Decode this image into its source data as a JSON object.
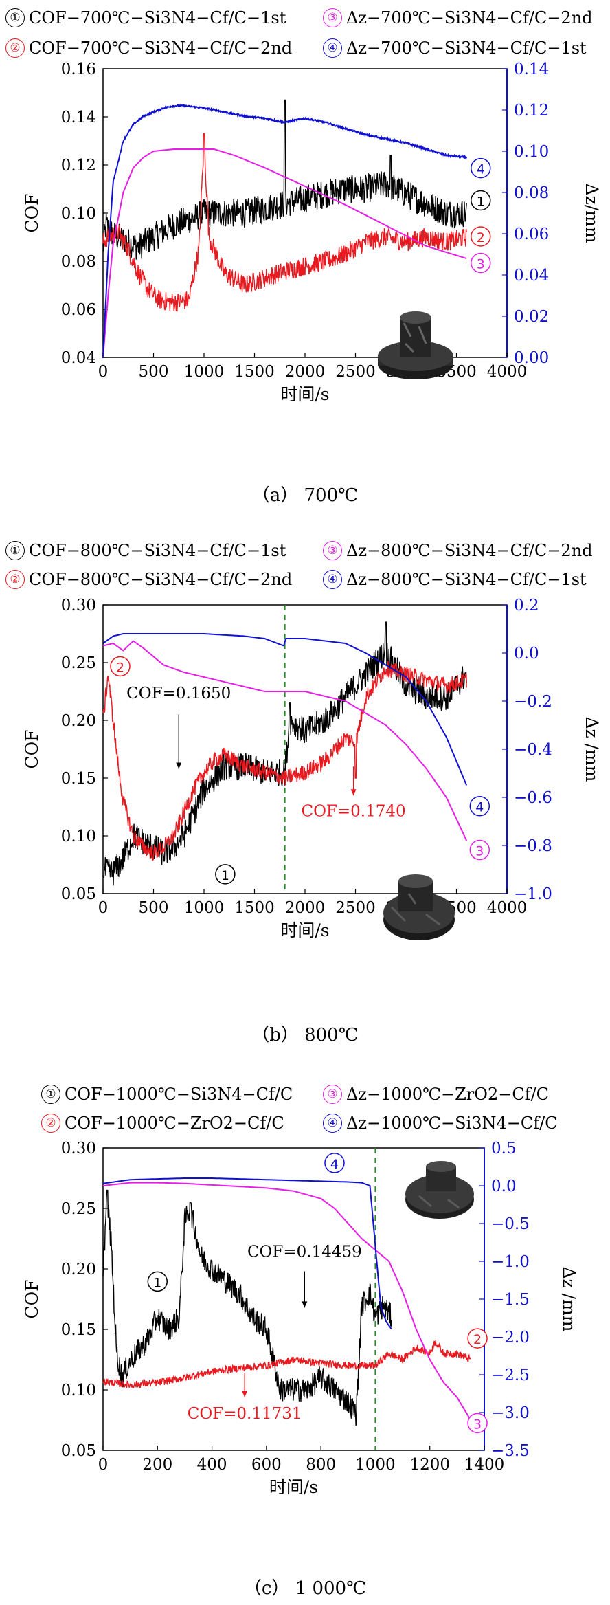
{
  "chart_data": [
    {
      "type": "line",
      "caption": "（a） 700℃",
      "xlabel": "时间/s",
      "ylabel": "COF",
      "y2label": "Δz/mm",
      "xlim": [
        0,
        4000
      ],
      "ylim": [
        0.04,
        0.16
      ],
      "y2lim": [
        0.0,
        0.14
      ],
      "xticks": [
        "0",
        "500",
        "1000",
        "1500",
        "2000",
        "2500",
        "3000",
        "3500",
        "4000"
      ],
      "yticks": [
        "0.04",
        "0.06",
        "0.08",
        "0.10",
        "0.12",
        "0.14",
        "0.16"
      ],
      "y2ticks": [
        "0.00",
        "0.02",
        "0.04",
        "0.06",
        "0.08",
        "0.10",
        "0.12",
        "0.14"
      ],
      "legend": [
        {
          "num": "①",
          "label": "COF−700℃−Si3N4−Cf/C−1st",
          "color": "#000000"
        },
        {
          "num": "②",
          "label": "COF−700℃−Si3N4−Cf/C−2nd",
          "color": "#e8191f"
        },
        {
          "num": "③",
          "label": "Δz−700℃−Si3N4−Cf/C−2nd",
          "color": "#e61ee6"
        },
        {
          "num": "④",
          "label": "Δz−700℃−Si3N4−Cf/C−1st",
          "color": "#1010d0"
        }
      ],
      "series": [
        {
          "axis": "left",
          "color": "#000000",
          "noise": 0.006,
          "x": [
            0,
            30,
            80,
            150,
            250,
            350,
            500,
            700,
            900,
            1000,
            1200,
            1400,
            1600,
            1800,
            2000,
            2200,
            2400,
            2600,
            2800,
            3000,
            3200,
            3400,
            3600
          ],
          "y": [
            0.085,
            0.095,
            0.092,
            0.09,
            0.088,
            0.086,
            0.09,
            0.095,
            0.098,
            0.1,
            0.1,
            0.1,
            0.102,
            0.104,
            0.106,
            0.108,
            0.11,
            0.11,
            0.112,
            0.108,
            0.104,
            0.1,
            0.1
          ],
          "spikes": [
            [
              1800,
              0.147
            ],
            [
              2850,
              0.124
            ]
          ]
        },
        {
          "axis": "left",
          "color": "#e8191f",
          "noise": 0.004,
          "x": [
            0,
            50,
            150,
            250,
            350,
            450,
            550,
            650,
            750,
            850,
            950,
            1000,
            1050,
            1200,
            1400,
            1600,
            1800,
            2000,
            2200,
            2400,
            2600,
            2800,
            3000,
            3200,
            3400,
            3600
          ],
          "y": [
            0.088,
            0.09,
            0.092,
            0.085,
            0.075,
            0.068,
            0.064,
            0.063,
            0.063,
            0.064,
            0.085,
            0.13,
            0.09,
            0.075,
            0.07,
            0.073,
            0.076,
            0.078,
            0.08,
            0.083,
            0.088,
            0.09,
            0.088,
            0.09,
            0.088,
            0.09
          ],
          "spikes": [
            [
              1000,
              0.133
            ]
          ]
        },
        {
          "axis": "right",
          "color": "#e61ee6",
          "noise": 0.0,
          "x": [
            0,
            50,
            100,
            200,
            300,
            400,
            500,
            700,
            900,
            1100,
            1300,
            1600,
            2000,
            2400,
            2800,
            3200,
            3600
          ],
          "y": [
            0.0,
            0.03,
            0.055,
            0.08,
            0.092,
            0.097,
            0.1,
            0.101,
            0.101,
            0.101,
            0.098,
            0.092,
            0.083,
            0.074,
            0.064,
            0.054,
            0.048
          ]
        },
        {
          "axis": "right",
          "color": "#1010d0",
          "noise": 0.0004,
          "x": [
            0,
            50,
            100,
            200,
            300,
            400,
            500,
            600,
            700,
            800,
            1000,
            1200,
            1400,
            1600,
            1800,
            2000,
            2200,
            2400,
            2600,
            2800,
            3000,
            3200,
            3400,
            3600
          ],
          "y": [
            0.0,
            0.05,
            0.085,
            0.105,
            0.113,
            0.117,
            0.119,
            0.121,
            0.122,
            0.122,
            0.121,
            0.119,
            0.117,
            0.116,
            0.114,
            0.116,
            0.114,
            0.111,
            0.108,
            0.106,
            0.104,
            0.101,
            0.098,
            0.097
          ]
        }
      ],
      "annotations": [
        {
          "text": "①",
          "color": "#000000",
          "x": 3740,
          "y": 0.103,
          "axis": "left"
        },
        {
          "text": "②",
          "color": "#e8191f",
          "x": 3740,
          "y": 0.088,
          "axis": "left"
        },
        {
          "text": "③",
          "color": "#e61ee6",
          "x": 3740,
          "y": 0.077,
          "axis": "left"
        },
        {
          "text": "④",
          "color": "#1010d0",
          "x": 3740,
          "y": 0.1164,
          "axis": "left"
        }
      ],
      "vline": null
    },
    {
      "type": "line",
      "caption": "（b） 800℃",
      "xlabel": "时间/s",
      "ylabel": "COF",
      "y2label": "Δz /mm",
      "xlim": [
        0,
        4000
      ],
      "ylim": [
        0.05,
        0.3
      ],
      "y2lim": [
        -1.0,
        0.2
      ],
      "xticks": [
        "0",
        "500",
        "1000",
        "1500",
        "2000",
        "2500",
        "3000",
        "3500",
        "4000"
      ],
      "yticks": [
        "0.05",
        "0.10",
        "0.15",
        "0.20",
        "0.25",
        "0.30"
      ],
      "y2ticks": [
        "−1.0",
        "−0.8",
        "−0.6",
        "−0.4",
        "−0.2",
        "0.0",
        "0.2"
      ],
      "legend": [
        {
          "num": "①",
          "label": "COF−800℃−Si3N4−Cf/C−1st",
          "color": "#000000"
        },
        {
          "num": "②",
          "label": "COF−800℃−Si3N4−Cf/C−2nd",
          "color": "#e8191f"
        },
        {
          "num": "③",
          "label": "Δz−800℃−Si3N4−Cf/C−2nd",
          "color": "#e61ee6"
        },
        {
          "num": "④",
          "label": "Δz−800℃−Si3N4−Cf/C−1st",
          "color": "#1010d0"
        }
      ],
      "series": [
        {
          "axis": "left",
          "color": "#000000",
          "noise": 0.012,
          "x": [
            0,
            100,
            200,
            300,
            400,
            500,
            600,
            700,
            800,
            900,
            1000,
            1100,
            1200,
            1400,
            1600,
            1800,
            1850,
            2000,
            2200,
            2400,
            2600,
            2800,
            3000,
            3200,
            3400,
            3600
          ],
          "y": [
            0.07,
            0.068,
            0.08,
            0.1,
            0.095,
            0.09,
            0.085,
            0.09,
            0.1,
            0.12,
            0.14,
            0.15,
            0.16,
            0.16,
            0.155,
            0.155,
            0.2,
            0.19,
            0.2,
            0.22,
            0.24,
            0.26,
            0.23,
            0.22,
            0.22,
            0.24
          ],
          "spikes": [
            [
              1850,
              0.215
            ],
            [
              2800,
              0.285
            ]
          ]
        },
        {
          "axis": "left",
          "color": "#e8191f",
          "noise": 0.007,
          "x": [
            0,
            50,
            100,
            150,
            200,
            300,
            400,
            500,
            600,
            700,
            800,
            900,
            1000,
            1100,
            1200,
            1400,
            1600,
            1800,
            2000,
            2200,
            2400,
            2500,
            2600,
            2800,
            3000,
            3200,
            3400,
            3600
          ],
          "y": [
            0.2,
            0.24,
            0.2,
            0.16,
            0.13,
            0.1,
            0.09,
            0.085,
            0.09,
            0.1,
            0.12,
            0.14,
            0.155,
            0.165,
            0.17,
            0.16,
            0.155,
            0.15,
            0.155,
            0.165,
            0.185,
            0.18,
            0.22,
            0.245,
            0.24,
            0.235,
            0.23,
            0.235
          ],
          "spikes": [
            [
              2500,
              0.15
            ]
          ]
        },
        {
          "axis": "right",
          "color": "#e61ee6",
          "noise": 0.0,
          "x": [
            0,
            100,
            200,
            300,
            400,
            600,
            800,
            1000,
            1200,
            1400,
            1600,
            1800,
            2000,
            2200,
            2400,
            2600,
            2800,
            3000,
            3200,
            3400,
            3600
          ],
          "y": [
            0.03,
            0.04,
            0.01,
            0.05,
            0.02,
            -0.05,
            -0.08,
            -0.1,
            -0.12,
            -0.14,
            -0.16,
            -0.16,
            -0.16,
            -0.18,
            -0.2,
            -0.25,
            -0.3,
            -0.38,
            -0.48,
            -0.6,
            -0.78
          ]
        },
        {
          "axis": "right",
          "color": "#1010d0",
          "noise": 0.0,
          "x": [
            0,
            100,
            200,
            300,
            500,
            800,
            1000,
            1200,
            1400,
            1600,
            1790,
            1810,
            1900,
            2000,
            2200,
            2400,
            2600,
            2800,
            3000,
            3200,
            3400,
            3600
          ],
          "y": [
            0.04,
            0.07,
            0.08,
            0.08,
            0.08,
            0.08,
            0.08,
            0.075,
            0.07,
            0.06,
            0.03,
            0.06,
            0.06,
            0.06,
            0.05,
            0.04,
            0.0,
            -0.05,
            -0.1,
            -0.2,
            -0.35,
            -0.55
          ]
        }
      ],
      "annotations": [
        {
          "text": "①",
          "color": "#000000",
          "x": 1210,
          "y": 0.062,
          "axis": "left"
        },
        {
          "text": "②",
          "color": "#e8191f",
          "x": 170,
          "y": 0.242,
          "axis": "left"
        },
        {
          "text": "③",
          "color": "#e61ee6",
          "x": 3730,
          "y": 0.083,
          "axis": "left"
        },
        {
          "text": "④",
          "color": "#1010d0",
          "x": 3730,
          "y": 0.121,
          "axis": "left"
        },
        {
          "text": "COF=0.1650",
          "color": "#000000",
          "x": 750,
          "y": 0.219,
          "axis": "left",
          "arrowTo": 0.158,
          "arrowFrom": 0.205
        },
        {
          "text": "COF=0.1740",
          "color": "#e8191f",
          "x": 2480,
          "y": 0.117,
          "axis": "left",
          "arrowTo": 0.135,
          "arrowFrom": 0.16
        }
      ],
      "vline": 1800
    },
    {
      "type": "line",
      "caption": "（c） 1 000℃",
      "xlabel": "时间/s",
      "ylabel": "COF",
      "y2label": "Δz /mm",
      "xlim": [
        0,
        1400
      ],
      "ylim": [
        0.05,
        0.3
      ],
      "y2lim": [
        -3.5,
        0.5
      ],
      "xticks": [
        "0",
        "200",
        "400",
        "600",
        "800",
        "1000",
        "1200",
        "1400"
      ],
      "yticks": [
        "0.05",
        "0.10",
        "0.15",
        "0.20",
        "0.25",
        "0.30"
      ],
      "y2ticks": [
        "−3.5",
        "−3.0",
        "−2.5",
        "−2.0",
        "−1.5",
        "−1.0",
        "−0.5",
        "0.0",
        "0.5"
      ],
      "legend": [
        {
          "num": "①",
          "label": "COF−1000℃−Si3N4−Cf/C",
          "color": "#000000"
        },
        {
          "num": "②",
          "label": "COF−1000℃−ZrO2−Cf/C",
          "color": "#e8191f"
        },
        {
          "num": "③",
          "label": "Δz−1000℃−ZrO2−Cf/C",
          "color": "#e61ee6"
        },
        {
          "num": "④",
          "label": "Δz−1000℃−Si3N4−Cf/C",
          "color": "#1010d0"
        }
      ],
      "series": [
        {
          "axis": "left",
          "color": "#000000",
          "noise": 0.01,
          "x": [
            0,
            15,
            30,
            50,
            70,
            90,
            120,
            160,
            200,
            240,
            280,
            300,
            320,
            360,
            400,
            450,
            500,
            550,
            600,
            650,
            700,
            750,
            800,
            850,
            900,
            930,
            950,
            980,
            1000,
            1030,
            1060
          ],
          "y": [
            0.2,
            0.26,
            0.22,
            0.13,
            0.11,
            0.12,
            0.13,
            0.14,
            0.16,
            0.15,
            0.16,
            0.24,
            0.25,
            0.21,
            0.2,
            0.19,
            0.18,
            0.16,
            0.15,
            0.1,
            0.1,
            0.1,
            0.11,
            0.1,
            0.09,
            0.08,
            0.17,
            0.18,
            0.16,
            0.17,
            0.16
          ],
          "spikes": [
            [
              15,
              0.265
            ],
            [
              320,
              0.255
            ]
          ]
        },
        {
          "axis": "left",
          "color": "#e8191f",
          "noise": 0.003,
          "x": [
            0,
            100,
            200,
            300,
            400,
            500,
            600,
            700,
            800,
            900,
            1000,
            1050,
            1100,
            1150,
            1200,
            1220,
            1250,
            1300,
            1350
          ],
          "y": [
            0.107,
            0.104,
            0.106,
            0.11,
            0.115,
            0.118,
            0.12,
            0.125,
            0.122,
            0.12,
            0.12,
            0.13,
            0.125,
            0.135,
            0.13,
            0.14,
            0.13,
            0.13,
            0.125
          ]
        },
        {
          "axis": "right",
          "color": "#e61ee6",
          "noise": 0.0,
          "x": [
            0,
            100,
            200,
            300,
            400,
            500,
            600,
            700,
            800,
            850,
            900,
            950,
            1000,
            1050,
            1100,
            1150,
            1200,
            1250,
            1300,
            1350
          ],
          "y": [
            0.0,
            0.04,
            0.04,
            0.03,
            0.01,
            -0.01,
            -0.03,
            -0.07,
            -0.17,
            -0.3,
            -0.5,
            -0.7,
            -0.85,
            -1.0,
            -1.4,
            -1.9,
            -2.3,
            -2.6,
            -2.8,
            -3.1
          ]
        },
        {
          "axis": "right",
          "color": "#1010d0",
          "noise": 0.0,
          "x": [
            0,
            100,
            200,
            300,
            400,
            500,
            600,
            700,
            800,
            900,
            950,
            980,
            1000,
            1020,
            1040,
            1060
          ],
          "y": [
            0.03,
            0.08,
            0.09,
            0.1,
            0.1,
            0.09,
            0.08,
            0.07,
            0.06,
            0.05,
            0.04,
            0.0,
            -0.8,
            -1.6,
            -1.8,
            -1.9
          ]
        }
      ],
      "annotations": [
        {
          "text": "①",
          "color": "#000000",
          "x": 200,
          "y": 0.185,
          "axis": "left"
        },
        {
          "text": "②",
          "color": "#e8191f",
          "x": 1375,
          "y": 0.138,
          "axis": "left"
        },
        {
          "text": "③",
          "color": "#e61ee6",
          "x": 1375,
          "y": 0.068,
          "axis": "left"
        },
        {
          "text": "④",
          "color": "#1010d0",
          "x": 850,
          "y": 0.283,
          "axis": "left"
        },
        {
          "text": "COF=0.14459",
          "color": "#000000",
          "x": 740,
          "y": 0.21,
          "axis": "left",
          "arrowTo": 0.168,
          "arrowFrom": 0.198
        },
        {
          "text": "COF=0.11731",
          "color": "#e8191f",
          "x": 520,
          "y": 0.076,
          "axis": "left",
          "arrowTo": 0.094,
          "arrowFrom": 0.114
        }
      ],
      "vline": 1000
    }
  ]
}
